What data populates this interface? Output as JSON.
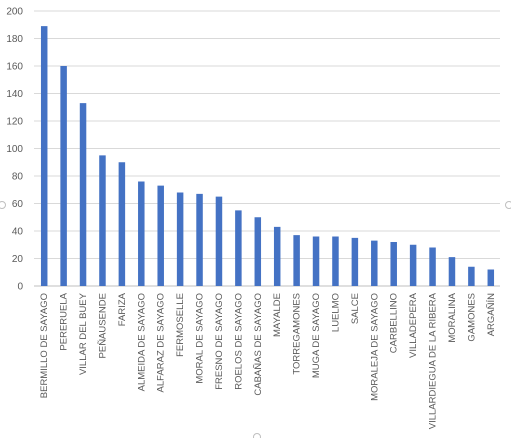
{
  "chart_data": {
    "type": "bar",
    "title": "",
    "xlabel": "",
    "ylabel": "",
    "ylim": [
      0,
      200
    ],
    "y_ticks": [
      0,
      20,
      40,
      60,
      80,
      100,
      120,
      140,
      160,
      180,
      200
    ],
    "grid": true,
    "legend": "none",
    "bar_color": "#4472c4",
    "categories": [
      "BERMILLO DE SAYAGO",
      "PERERUELA",
      "VILLAR DEL BUEY",
      "PEÑAUSENDE",
      "FARIZA",
      "ALMEIDA DE SAYAGO",
      "ALFARAZ DE SAYAGO",
      "FERMOSELLE",
      "MORAL DE SAYAGO",
      "FRESNO DE SAYAGO",
      "ROELOS DE SAYAGO",
      "CABAÑAS DE SAYAGO",
      "MAYALDE",
      "TORREGAMONES",
      "MUGA DE SAYAGO",
      "LUELMO",
      "SALCE",
      "MORALEJA DE SAYAGO",
      "CARBELLINO",
      "VILLADEPERA",
      "VILLARDIEGUA DE LA RIBERA",
      "MORALINA",
      "GAMONES",
      "ARGAÑÍN"
    ],
    "values": [
      189,
      160,
      133,
      95,
      90,
      76,
      73,
      68,
      67,
      65,
      55,
      50,
      43,
      37,
      36,
      36,
      35,
      33,
      32,
      30,
      28,
      21,
      14,
      12
    ]
  }
}
